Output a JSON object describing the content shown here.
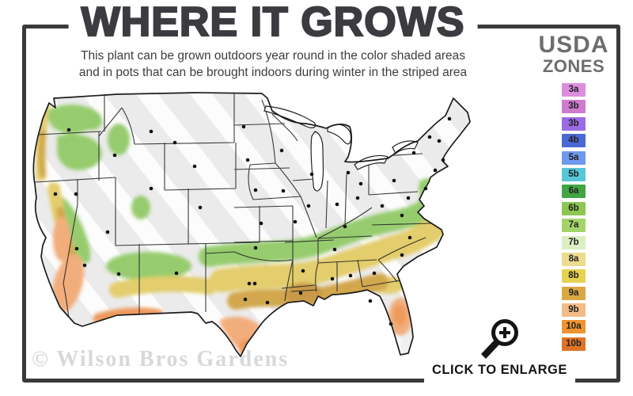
{
  "header": {
    "title": "WHERE IT GROWS",
    "subtitle_line1": "This plant can be grown outdoors year round in the color shaded areas",
    "subtitle_line2": "and in pots that can be brought indoors during winter in the striped area"
  },
  "legend": {
    "title_line1": "USDA",
    "title_line2": "ZONES",
    "zones": [
      {
        "label": "3a",
        "color": "#DC8EDC"
      },
      {
        "label": "3b",
        "color": "#CE7BCE"
      },
      {
        "label": "3b",
        "color": "#9B6BE6"
      },
      {
        "label": "4b",
        "color": "#4A69D4"
      },
      {
        "label": "5a",
        "color": "#6E99EE"
      },
      {
        "label": "5b",
        "color": "#57C7D8"
      },
      {
        "label": "6a",
        "color": "#41A544"
      },
      {
        "label": "6b",
        "color": "#8CC653"
      },
      {
        "label": "7a",
        "color": "#A3D46A"
      },
      {
        "label": "7b",
        "color": "#DCEFC2"
      },
      {
        "label": "8a",
        "color": "#EBDC8F"
      },
      {
        "label": "8b",
        "color": "#E6D251"
      },
      {
        "label": "9a",
        "color": "#DAA842"
      },
      {
        "label": "9b",
        "color": "#F4BC88"
      },
      {
        "label": "10a",
        "color": "#EF9330"
      },
      {
        "label": "10b",
        "color": "#DF7428"
      }
    ]
  },
  "map": {
    "palette": {
      "base": "#EBEBEB",
      "stripe": "#FFFFFF",
      "outline": "#1C1C1C",
      "state_line": "#262626",
      "dot": "#111111",
      "water": "#FFFFFF",
      "green": "#96CC6E",
      "yellow": "#E3CD6C",
      "gold": "#D2A74E",
      "gold_dark": "#C89A46",
      "salmon": "#F2AD7C",
      "orange": "#EE9A5C",
      "south_fl": "#F0F0F0"
    }
  },
  "frame": {
    "color": "#3A3A3A"
  },
  "footer": {
    "watermark": "© Wilson Bros Gardens",
    "enlarge_label": "CLICK TO ENLARGE"
  }
}
